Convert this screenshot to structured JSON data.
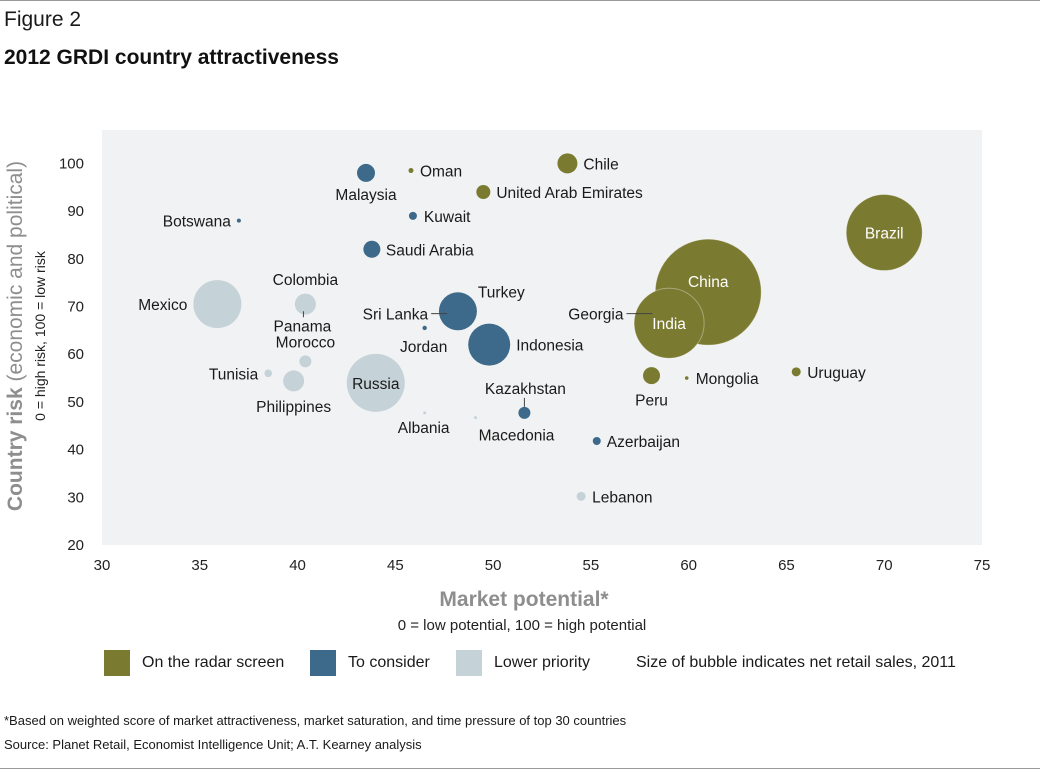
{
  "figure_label": "Figure 2",
  "title": "2012 GRDI country attractiveness",
  "chart_data": {
    "type": "scatter",
    "subtype": "bubble",
    "title": "2012 GRDI country attractiveness",
    "xlabel": "Market potential*",
    "xlabel_sub": "0 = low potential, 100 = high potential",
    "ylabel": "Country risk",
    "ylabel_suffix": " (economic and political)",
    "ylabel_sub": "0 = high risk, 100 = low risk",
    "xlim": [
      30,
      75
    ],
    "ylim": [
      20,
      107
    ],
    "xticks": [
      30,
      35,
      40,
      45,
      50,
      55,
      60,
      65,
      70,
      75
    ],
    "yticks": [
      20,
      30,
      40,
      50,
      60,
      70,
      80,
      90,
      100
    ],
    "grid": false,
    "colors": {
      "radar": "#7a7a31",
      "consider": "#3d6a8a",
      "lower": "#c5d2d8",
      "panel": "#f1f2f3"
    },
    "categories": [
      "radar",
      "consider",
      "lower"
    ],
    "points": [
      {
        "country": "Chile",
        "x": 53.8,
        "y": 100,
        "r": 10,
        "cat": "radar"
      },
      {
        "country": "United Arab Emirates",
        "x": 49.5,
        "y": 94,
        "r": 7,
        "cat": "radar"
      },
      {
        "country": "Oman",
        "x": 45.8,
        "y": 98.5,
        "r": 2.5,
        "cat": "radar"
      },
      {
        "country": "Brazil",
        "x": 70,
        "y": 85.5,
        "r": 38,
        "cat": "radar",
        "label_inside": true
      },
      {
        "country": "China",
        "x": 61,
        "y": 73,
        "r": 53,
        "cat": "radar",
        "label_inside": true
      },
      {
        "country": "India",
        "x": 59,
        "y": 66.5,
        "r": 35,
        "cat": "radar",
        "label_inside": true
      },
      {
        "country": "Georgia",
        "x": 58.2,
        "y": 68.5,
        "r": 1.8,
        "cat": "radar"
      },
      {
        "country": "Peru",
        "x": 58.1,
        "y": 55.5,
        "r": 8.5,
        "cat": "radar"
      },
      {
        "country": "Mongolia",
        "x": 59.9,
        "y": 55,
        "r": 1.8,
        "cat": "radar"
      },
      {
        "country": "Uruguay",
        "x": 65.5,
        "y": 56.3,
        "r": 4.5,
        "cat": "radar"
      },
      {
        "country": "Malaysia",
        "x": 43.5,
        "y": 98,
        "r": 9,
        "cat": "consider"
      },
      {
        "country": "Kuwait",
        "x": 45.9,
        "y": 89,
        "r": 4,
        "cat": "consider"
      },
      {
        "country": "Saudi Arabia",
        "x": 43.8,
        "y": 82,
        "r": 8.5,
        "cat": "consider"
      },
      {
        "country": "Turkey",
        "x": 48.2,
        "y": 69,
        "r": 19,
        "cat": "consider"
      },
      {
        "country": "Sri Lanka",
        "x": 47.7,
        "y": 68.5,
        "r": 2,
        "cat": "consider"
      },
      {
        "country": "Jordan",
        "x": 46.5,
        "y": 65.5,
        "r": 2.2,
        "cat": "consider"
      },
      {
        "country": "Indonesia",
        "x": 49.8,
        "y": 62,
        "r": 21,
        "cat": "consider"
      },
      {
        "country": "Kazakhstan",
        "x": 51.6,
        "y": 47.7,
        "r": 6,
        "cat": "consider"
      },
      {
        "country": "Azerbaijan",
        "x": 55.3,
        "y": 41.8,
        "r": 4,
        "cat": "consider"
      },
      {
        "country": "Botswana",
        "x": 37,
        "y": 88,
        "r": 2,
        "cat": "consider"
      },
      {
        "country": "Mexico",
        "x": 35.9,
        "y": 70.5,
        "r": 24,
        "cat": "lower"
      },
      {
        "country": "Colombia",
        "x": 40.4,
        "y": 70.5,
        "r": 10.5,
        "cat": "lower"
      },
      {
        "country": "Panama",
        "x": 40.3,
        "y": 69,
        "r": 2.5,
        "cat": "lower"
      },
      {
        "country": "Morocco",
        "x": 40.4,
        "y": 58.5,
        "r": 6,
        "cat": "lower"
      },
      {
        "country": "Tunisia",
        "x": 38.5,
        "y": 56,
        "r": 3.8,
        "cat": "lower"
      },
      {
        "country": "Philippines",
        "x": 39.8,
        "y": 54.4,
        "r": 10.5,
        "cat": "lower"
      },
      {
        "country": "Russia",
        "x": 44,
        "y": 54,
        "r": 29,
        "cat": "lower",
        "label_inside": true
      },
      {
        "country": "Albania",
        "x": 46.5,
        "y": 47.7,
        "r": 1.5,
        "cat": "lower"
      },
      {
        "country": "Macedonia",
        "x": 49.1,
        "y": 46.7,
        "r": 1.5,
        "cat": "lower"
      },
      {
        "country": "Lebanon",
        "x": 54.5,
        "y": 30.2,
        "r": 4.5,
        "cat": "lower"
      }
    ]
  },
  "legend": {
    "radar": "On the radar screen",
    "consider": "To consider",
    "lower": "Lower priority",
    "size_note": "Size of bubble indicates net retail sales, 2011"
  },
  "footnote": "*Based on weighted score of market attractiveness, market saturation, and time pressure of top 30 countries",
  "source": "Source: Planet Retail, Economist Intelligence Unit; A.T. Kearney analysis"
}
